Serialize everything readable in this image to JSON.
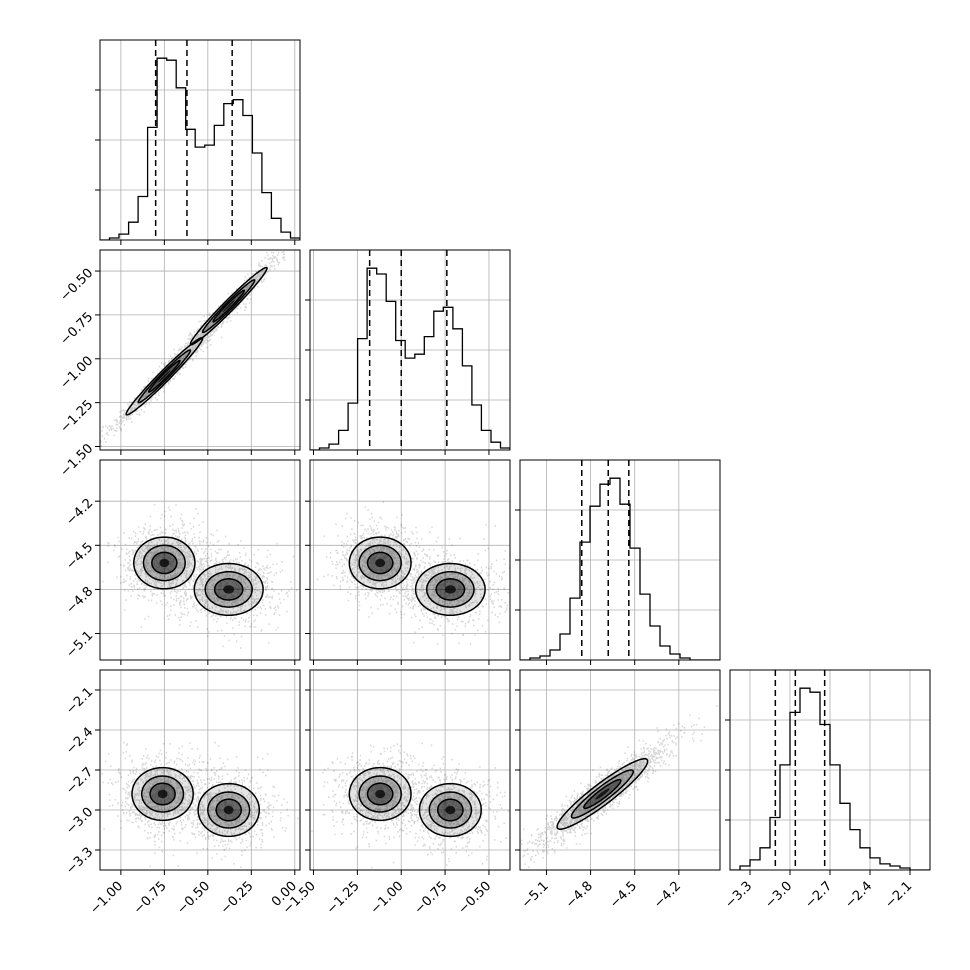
{
  "chart_data": {
    "type": "corner",
    "title": "",
    "colors": {
      "line": "#000000",
      "grid": "#b0b0b0",
      "density": "#000000"
    },
    "grid": true,
    "parameters": [
      {
        "range": [
          -1.12,
          0.03
        ],
        "ticks": [
          -1.0,
          -0.75,
          -0.5,
          -0.25,
          0.0
        ],
        "tick_labels": [
          "−1.00",
          "−0.75",
          "−0.50",
          "−0.25",
          "0.00"
        ],
        "quantiles": [
          -0.8,
          -0.62,
          -0.36
        ],
        "histogram": [
          0,
          1,
          3,
          9,
          22,
          57,
          92,
          91,
          77,
          56,
          47,
          48,
          58,
          69,
          71,
          63,
          44,
          24,
          11,
          4,
          1
        ]
      },
      {
        "range": [
          -1.52,
          -0.38
        ],
        "ticks": [
          -1.5,
          -1.25,
          -1.0,
          -0.75,
          -0.5
        ],
        "tick_labels": [
          "−1.50",
          "−1.25",
          "−1.00",
          "−0.75",
          "−0.50"
        ],
        "quantiles": [
          -1.18,
          -1.0,
          -0.74
        ],
        "histogram": [
          0,
          1,
          3,
          10,
          24,
          57,
          93,
          90,
          76,
          56,
          47,
          49,
          58,
          71,
          73,
          62,
          43,
          23,
          10,
          4,
          1
        ]
      },
      {
        "range": [
          -5.28,
          -3.92
        ],
        "ticks": [
          -5.1,
          -4.8,
          -4.5,
          -4.2
        ],
        "tick_labels": [
          "−5.1",
          "−4.8",
          "−4.5",
          "−4.2"
        ],
        "quantiles": [
          -4.86,
          -4.68,
          -4.54
        ],
        "histogram": [
          0,
          1,
          2,
          5,
          13,
          31,
          59,
          77,
          88,
          91,
          78,
          56,
          33,
          17,
          7,
          3,
          1,
          0,
          0,
          0
        ]
      },
      {
        "range": [
          -3.45,
          -1.95
        ],
        "ticks": [
          -3.3,
          -3.0,
          -2.7,
          -2.4,
          -2.1
        ],
        "tick_labels": [
          "−3.3",
          "−3.0",
          "−2.7",
          "−2.4",
          "−2.1"
        ],
        "quantiles": [
          -3.11,
          -2.96,
          -2.74
        ],
        "histogram": [
          0,
          2,
          5,
          11,
          26,
          52,
          78,
          90,
          88,
          72,
          52,
          33,
          20,
          11,
          6,
          3,
          2,
          1,
          0,
          0
        ]
      }
    ],
    "pairs": [
      {
        "x_param": 0,
        "y_param": 1,
        "modes": [
          {
            "center": [
              -0.75,
              -1.1
            ],
            "sd": [
              0.1,
              0.1
            ],
            "corr": 0.98,
            "weight": 0.55
          },
          {
            "center": [
              -0.38,
              -0.7
            ],
            "sd": [
              0.1,
              0.1
            ],
            "corr": 0.98,
            "weight": 0.45
          }
        ]
      },
      {
        "x_param": 0,
        "y_param": 2,
        "modes": [
          {
            "center": [
              -0.75,
              -4.62
            ],
            "sd": [
              0.08,
              0.08
            ],
            "corr": 0.0,
            "weight": 0.55
          },
          {
            "center": [
              -0.38,
              -4.8
            ],
            "sd": [
              0.09,
              0.08
            ],
            "corr": 0.0,
            "weight": 0.45
          }
        ]
      },
      {
        "x_param": 1,
        "y_param": 2,
        "modes": [
          {
            "center": [
              -1.12,
              -4.62
            ],
            "sd": [
              0.08,
              0.08
            ],
            "corr": 0.0,
            "weight": 0.55
          },
          {
            "center": [
              -0.72,
              -4.8
            ],
            "sd": [
              0.09,
              0.08
            ],
            "corr": 0.0,
            "weight": 0.45
          }
        ]
      },
      {
        "x_param": 0,
        "y_param": 3,
        "modes": [
          {
            "center": [
              -0.76,
              -2.88
            ],
            "sd": [
              0.08,
              0.09
            ],
            "corr": 0.0,
            "weight": 0.55
          },
          {
            "center": [
              -0.38,
              -3.0
            ],
            "sd": [
              0.08,
              0.09
            ],
            "corr": 0.0,
            "weight": 0.45
          }
        ]
      },
      {
        "x_param": 1,
        "y_param": 3,
        "modes": [
          {
            "center": [
              -1.12,
              -2.88
            ],
            "sd": [
              0.08,
              0.09
            ],
            "corr": 0.0,
            "weight": 0.55
          },
          {
            "center": [
              -0.72,
              -3.0
            ],
            "sd": [
              0.08,
              0.09
            ],
            "corr": 0.0,
            "weight": 0.45
          }
        ]
      },
      {
        "x_param": 2,
        "y_param": 3,
        "modes": [
          {
            "center": [
              -4.72,
              -2.88
            ],
            "sd": [
              0.14,
              0.12
            ],
            "corr": 0.93,
            "weight": 1.0
          }
        ]
      }
    ]
  }
}
